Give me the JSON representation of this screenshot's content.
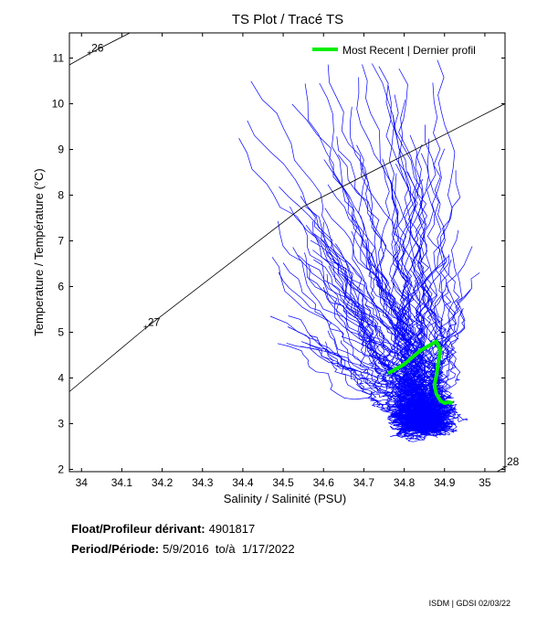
{
  "chart_data": {
    "type": "scatter",
    "title": "TS Plot / Tracé TS",
    "xlabel": "Salinity / Salinité (PSU)",
    "ylabel": "Temperature / Température (°C)",
    "xlim": [
      33.97,
      35.05
    ],
    "ylim": [
      1.95,
      11.55
    ],
    "xticks": [
      "34",
      "34.1",
      "34.2",
      "34.3",
      "34.4",
      "34.5",
      "34.6",
      "34.7",
      "34.8",
      "34.9",
      "35"
    ],
    "yticks": [
      "2",
      "3",
      "4",
      "5",
      "6",
      "7",
      "8",
      "9",
      "10",
      "11"
    ],
    "legend": {
      "label": "Most Recent | Dernier profil",
      "placement": "top-right"
    },
    "isopycnals": [
      {
        "label": "26",
        "label_at": [
          34.02,
          11.1
        ],
        "points": [
          [
            33.97,
            10.85
          ],
          [
            34.02,
            11.1
          ],
          [
            34.12,
            11.55
          ]
        ]
      },
      {
        "label": "27",
        "label_at": [
          34.16,
          5.1
        ],
        "points": [
          [
            33.97,
            3.7
          ],
          [
            34.16,
            5.1
          ],
          [
            34.55,
            7.75
          ],
          [
            35.05,
            10.0
          ]
        ]
      },
      {
        "label": "28",
        "label_at": [
          35.05,
          2.05
        ],
        "points": [
          [
            35.03,
            1.95
          ],
          [
            35.05,
            2.05
          ]
        ]
      }
    ],
    "series": [
      {
        "name": "Most Recent | Dernier profil",
        "color": "#00ee00",
        "x": [
          34.76,
          34.78,
          34.8,
          34.82,
          34.84,
          34.86,
          34.88,
          34.89,
          34.885,
          34.88,
          34.875,
          34.88,
          34.89,
          34.9,
          34.91,
          34.92
        ],
        "y": [
          4.1,
          4.2,
          4.3,
          4.45,
          4.6,
          4.7,
          4.8,
          4.6,
          4.35,
          4.05,
          3.85,
          3.65,
          3.5,
          3.45,
          3.47,
          3.45
        ]
      }
    ],
    "profiles_color": "#0000ff"
  },
  "info": {
    "float_label": "Float/Profileur dérivant:",
    "float_value": "4901817",
    "period_label": "Period/Période:",
    "period_value": "5/9/2016  to/à  1/17/2022"
  },
  "footer": "ISDM | GDSI  02/03/22"
}
